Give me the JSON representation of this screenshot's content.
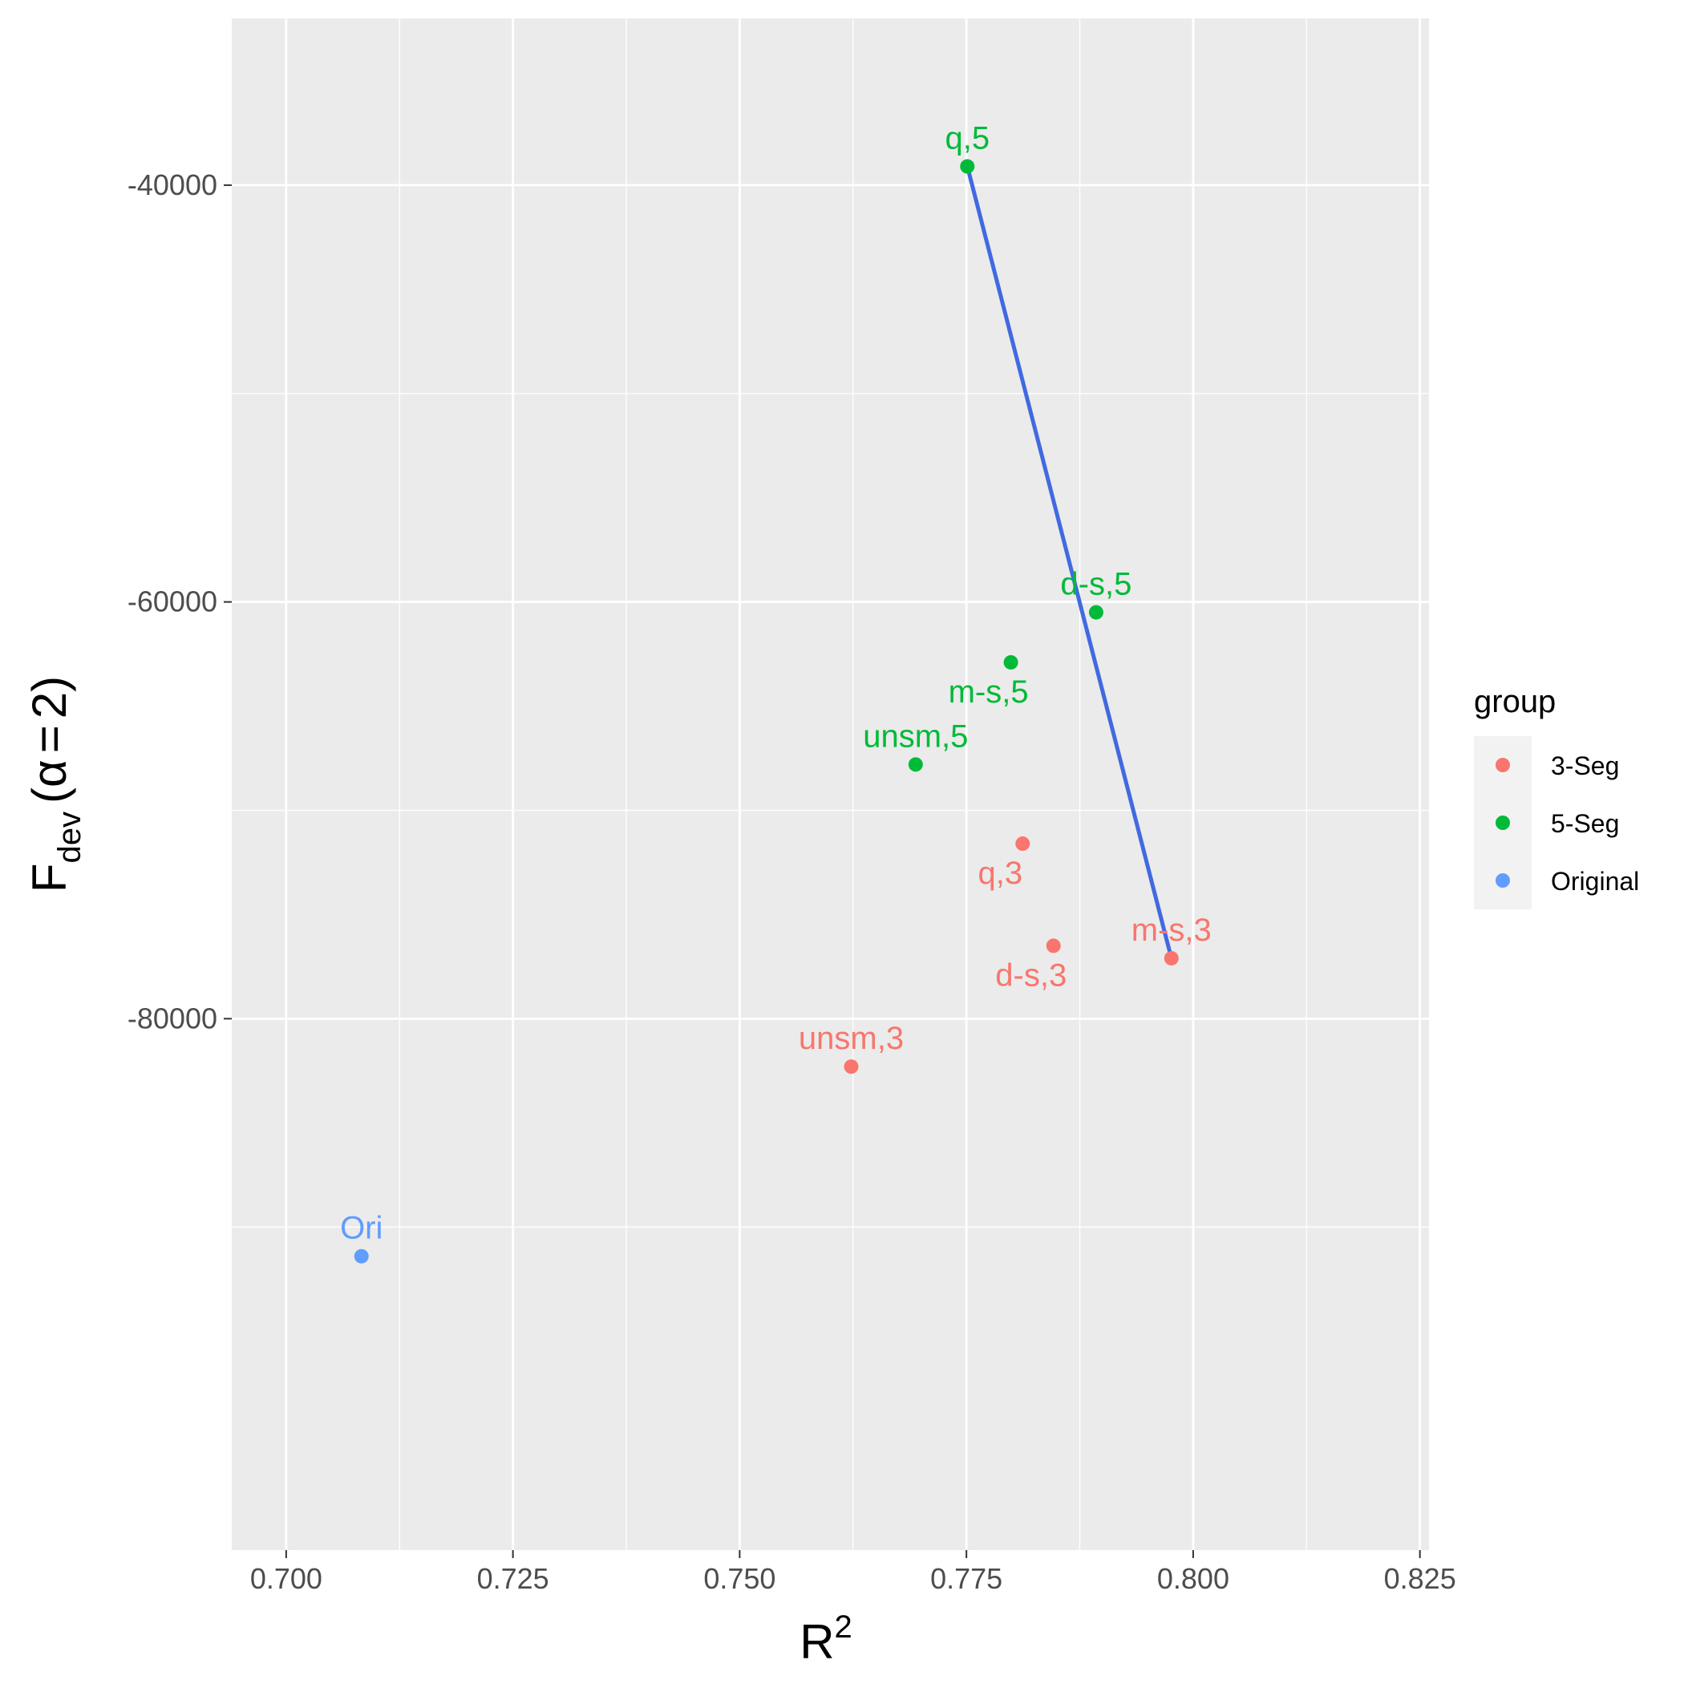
{
  "chart_data": {
    "type": "scatter",
    "xlabel": {
      "base": "R",
      "sup": "2"
    },
    "ylabel": {
      "base": "F",
      "sub": "dev",
      "paren_open": "(",
      "alpha": "α",
      "equals": "=",
      "value": "2",
      "paren_close": ")"
    },
    "xlim": [
      0.694,
      0.826
    ],
    "ylim": [
      -105500,
      -32000
    ],
    "x_ticks": [
      0.7,
      0.725,
      0.75,
      0.775,
      0.8,
      0.825
    ],
    "x_tick_labels": [
      "0.700",
      "0.725",
      "0.750",
      "0.775",
      "0.800",
      "0.825"
    ],
    "x_minor_ticks": [
      0.7125,
      0.7375,
      0.7625,
      0.7875,
      0.8125
    ],
    "y_ticks": [
      -40000,
      -60000,
      -80000
    ],
    "y_tick_labels": [
      "-40000",
      "-60000",
      "-80000"
    ],
    "y_minor_ticks": [
      -50000,
      -70000,
      -90000
    ],
    "grid": true,
    "legend": {
      "title": "group",
      "position": "right",
      "items": [
        {
          "label": "3-Seg",
          "color": "#F8766D"
        },
        {
          "label": "5-Seg",
          "color": "#00BA38"
        },
        {
          "label": "Original",
          "color": "#619CFF"
        }
      ]
    },
    "points": [
      {
        "label": "q,5",
        "group": "5-Seg",
        "x": 0.7751,
        "y": -39100,
        "label_pos": "above"
      },
      {
        "label": "d-s,5",
        "group": "5-Seg",
        "x": 0.7893,
        "y": -60500,
        "label_pos": "above"
      },
      {
        "label": "m-s,5",
        "group": "5-Seg",
        "x": 0.7799,
        "y": -62900,
        "label_pos": "below-left"
      },
      {
        "label": "unsm,5",
        "group": "5-Seg",
        "x": 0.7694,
        "y": -67800,
        "label_pos": "above"
      },
      {
        "label": "q,3",
        "group": "3-Seg",
        "x": 0.7812,
        "y": -71600,
        "label_pos": "below-left"
      },
      {
        "label": "d-s,3",
        "group": "3-Seg",
        "x": 0.7846,
        "y": -76500,
        "label_pos": "below-left"
      },
      {
        "label": "m-s,3",
        "group": "3-Seg",
        "x": 0.7976,
        "y": -77100,
        "label_pos": "above"
      },
      {
        "label": "unsm,3",
        "group": "3-Seg",
        "x": 0.7623,
        "y": -82300,
        "label_pos": "above"
      },
      {
        "label": "Ori",
        "group": "Original",
        "x": 0.7083,
        "y": -91400,
        "label_pos": "above"
      }
    ],
    "line": {
      "color": "#4169E1",
      "points": [
        {
          "x": 0.7751,
          "y": -39100
        },
        {
          "x": 0.7976,
          "y": -77100
        }
      ]
    }
  }
}
